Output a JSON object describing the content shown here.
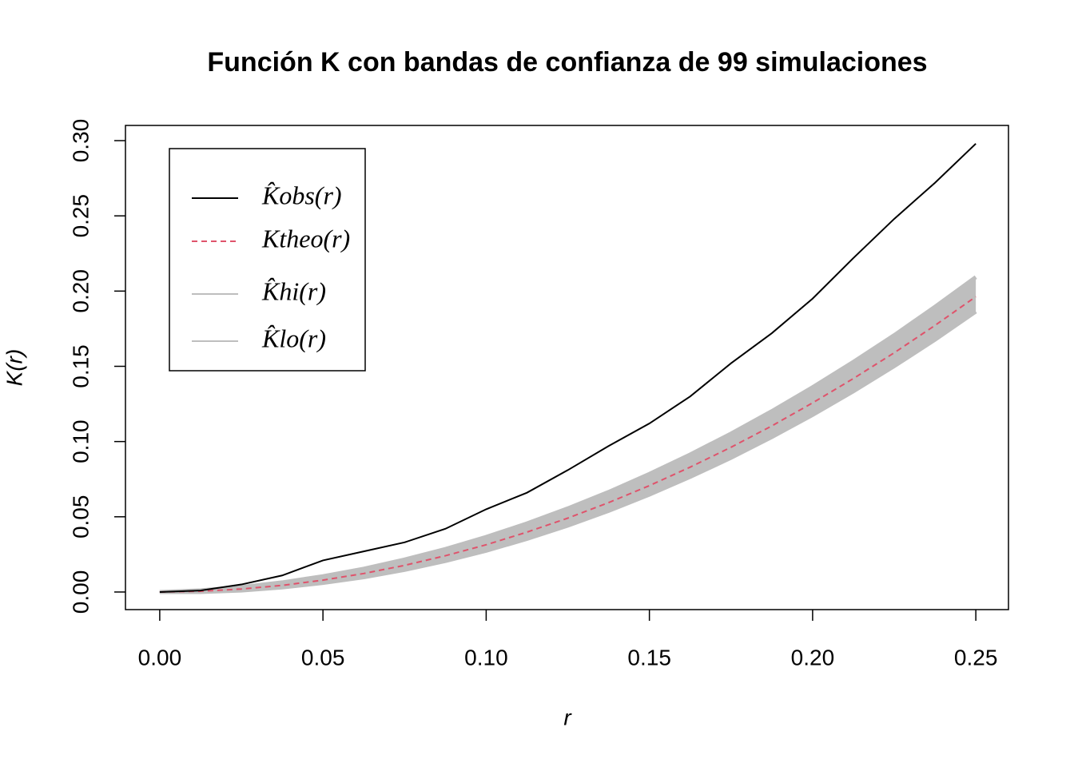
{
  "chart_data": {
    "type": "line",
    "title": "Función K con bandas de confianza de 99 simulaciones",
    "x_label": "r",
    "y_label": "K(r)",
    "x": [
      0,
      0.0125,
      0.025,
      0.0375,
      0.05,
      0.0625,
      0.075,
      0.0875,
      0.1,
      0.1125,
      0.125,
      0.1375,
      0.15,
      0.1625,
      0.175,
      0.1875,
      0.2,
      0.2125,
      0.225,
      0.2375,
      0.25
    ],
    "series": [
      {
        "name": "K̂obs(r)",
        "color": "#000000",
        "linestyle": "solid",
        "values": [
          0,
          0.001,
          0.005,
          0.011,
          0.021,
          0.027,
          0.033,
          0.042,
          0.055,
          0.066,
          0.081,
          0.097,
          0.112,
          0.13,
          0.152,
          0.172,
          0.195,
          0.222,
          0.248,
          0.272,
          0.298
        ]
      },
      {
        "name": "Ktheo(r)",
        "color": "#DF536B",
        "linestyle": "dashed",
        "values": [
          0,
          0.0005,
          0.002,
          0.0044,
          0.0079,
          0.0123,
          0.0177,
          0.0241,
          0.0314,
          0.0398,
          0.0491,
          0.0594,
          0.0707,
          0.083,
          0.0962,
          0.1104,
          0.1257,
          0.1419,
          0.159,
          0.1772,
          0.1963
        ]
      },
      {
        "name": "K̂hi(r)",
        "color": "#BEBEBE",
        "linestyle": "solid",
        "values": [
          0,
          0.0011,
          0.0033,
          0.0064,
          0.0105,
          0.0155,
          0.0216,
          0.0286,
          0.0366,
          0.0456,
          0.0556,
          0.0665,
          0.0785,
          0.0914,
          0.1053,
          0.1202,
          0.1361,
          0.153,
          0.1707,
          0.1896,
          0.2093
        ]
      },
      {
        "name": "K̂lo(r)",
        "color": "#BEBEBE",
        "linestyle": "solid",
        "values": [
          0,
          0,
          0.001,
          0.003,
          0.006,
          0.0098,
          0.0147,
          0.0206,
          0.0274,
          0.0353,
          0.0441,
          0.0539,
          0.0647,
          0.0765,
          0.0892,
          0.103,
          0.1177,
          0.1334,
          0.1501,
          0.1677,
          0.1864
        ]
      }
    ],
    "xlim": [
      -0.0105,
      0.26
    ],
    "xticks": [
      {
        "value": 0,
        "label": "0.00"
      },
      0.05,
      {
        "value": 0.1,
        "label": "0.10"
      },
      0.15,
      {
        "value": 0.2,
        "label": "0.20"
      },
      0.25
    ],
    "ylim": [
      -0.0117,
      0.3101
    ],
    "yticks": [
      {
        "value": 0,
        "label": "0.00"
      },
      0.05,
      {
        "value": 0.1,
        "label": "0.10"
      },
      0.15,
      {
        "value": 0.2,
        "label": "0.20"
      },
      0.25,
      {
        "value": 0.3,
        "label": "0.30"
      }
    ],
    "legend": "top-left",
    "grid": false
  }
}
